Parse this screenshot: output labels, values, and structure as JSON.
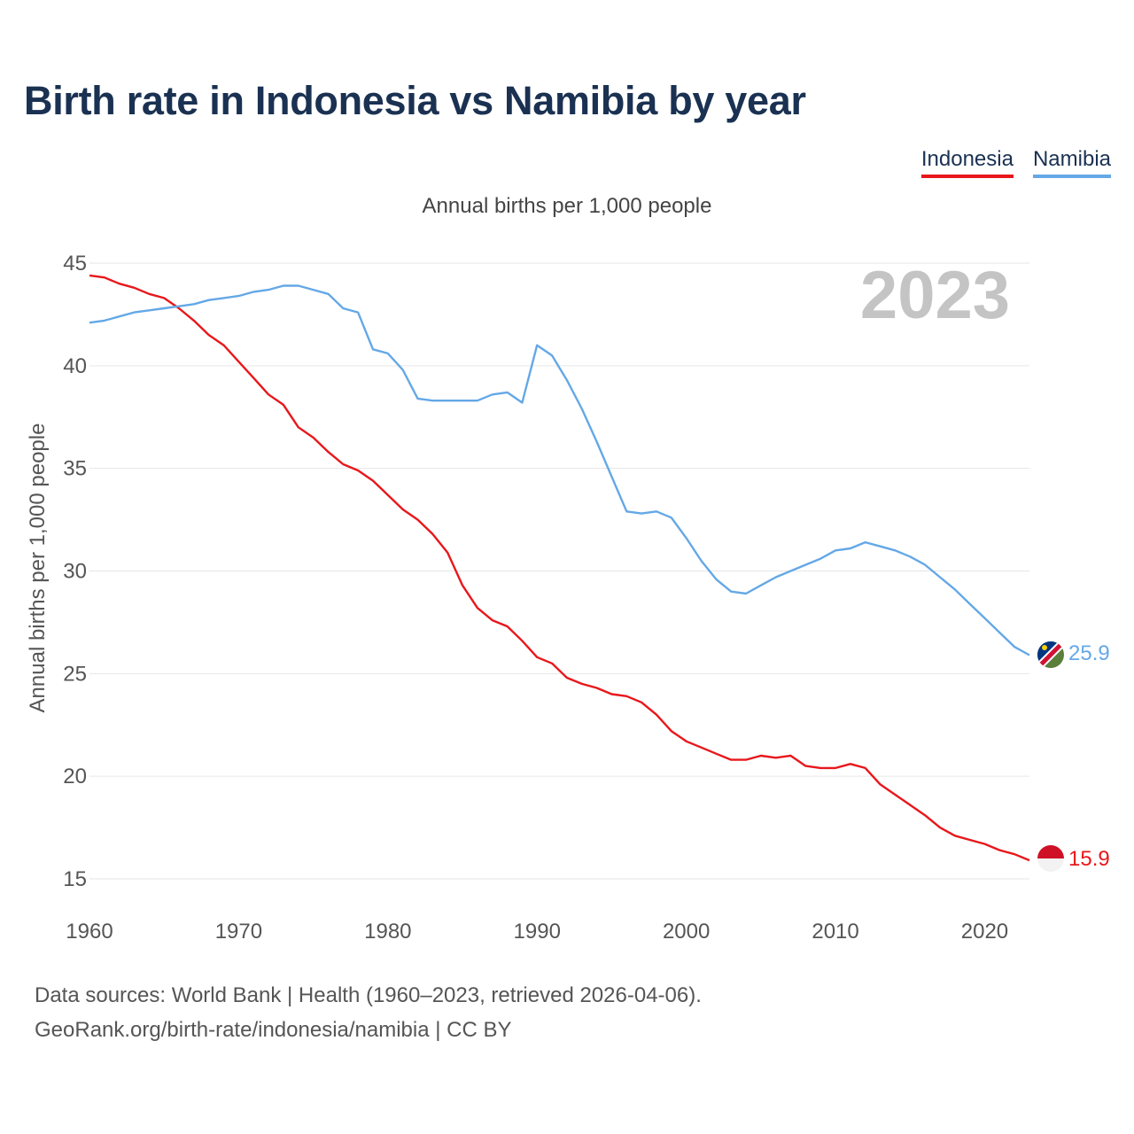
{
  "title": "Birth rate in Indonesia vs Namibia by year",
  "legend": {
    "indonesia": "Indonesia",
    "namibia": "Namibia"
  },
  "colors": {
    "indonesia": "#e8171b",
    "namibia": "#64a8e6",
    "title": "#1a3152",
    "year": "#c4c4c4"
  },
  "footer": {
    "line1": "Data sources: World Bank | Health (1960–2023, retrieved 2026-04-06).",
    "line2": "GeoRank.org/birth-rate/indonesia/namibia | CC BY"
  },
  "chart_data": {
    "type": "line",
    "title": "Birth rate in Indonesia vs Namibia by year",
    "subtitle": "Annual births per 1,000 people",
    "ylabel": "Annual births per 1,000 people",
    "xlabel": "",
    "year_label": "2023",
    "xlim": [
      1960,
      2023
    ],
    "ylim": [
      15,
      45
    ],
    "x_ticks": [
      1960,
      1970,
      1980,
      1990,
      2000,
      2010,
      2020
    ],
    "y_ticks": [
      15,
      20,
      25,
      30,
      35,
      40,
      45
    ],
    "grid": true,
    "legend_position": "top-right",
    "x": [
      1960,
      1961,
      1962,
      1963,
      1964,
      1965,
      1966,
      1967,
      1968,
      1969,
      1970,
      1971,
      1972,
      1973,
      1974,
      1975,
      1976,
      1977,
      1978,
      1979,
      1980,
      1981,
      1982,
      1983,
      1984,
      1985,
      1986,
      1987,
      1988,
      1989,
      1990,
      1991,
      1992,
      1993,
      1994,
      1995,
      1996,
      1997,
      1998,
      1999,
      2000,
      2001,
      2002,
      2003,
      2004,
      2005,
      2006,
      2007,
      2008,
      2009,
      2010,
      2011,
      2012,
      2013,
      2014,
      2015,
      2016,
      2017,
      2018,
      2019,
      2020,
      2021,
      2022,
      2023
    ],
    "series": [
      {
        "name": "Indonesia",
        "end_label": "15.9",
        "values": [
          44.4,
          44.3,
          44.0,
          43.8,
          43.5,
          43.3,
          42.8,
          42.2,
          41.5,
          41.0,
          40.2,
          39.4,
          38.6,
          38.1,
          37.0,
          36.5,
          35.8,
          35.2,
          34.9,
          34.4,
          33.7,
          33.0,
          32.5,
          31.8,
          30.9,
          29.3,
          28.2,
          27.6,
          27.3,
          26.6,
          25.8,
          25.5,
          24.8,
          24.5,
          24.3,
          24.0,
          23.9,
          23.6,
          23.0,
          22.2,
          21.7,
          21.4,
          21.1,
          20.8,
          20.8,
          21.0,
          20.9,
          21.0,
          20.5,
          20.4,
          20.4,
          20.6,
          20.4,
          19.6,
          19.1,
          18.6,
          18.1,
          17.5,
          17.1,
          16.9,
          16.7,
          16.4,
          16.2,
          15.9
        ]
      },
      {
        "name": "Namibia",
        "end_label": "25.9",
        "values": [
          42.1,
          42.2,
          42.4,
          42.6,
          42.7,
          42.8,
          42.9,
          43.0,
          43.2,
          43.3,
          43.4,
          43.6,
          43.7,
          43.9,
          43.9,
          43.7,
          43.5,
          42.8,
          42.6,
          40.8,
          40.6,
          39.8,
          38.4,
          38.3,
          38.3,
          38.3,
          38.3,
          38.6,
          38.7,
          38.2,
          41.0,
          40.5,
          39.3,
          37.9,
          36.3,
          34.6,
          32.9,
          32.8,
          32.9,
          32.6,
          31.6,
          30.5,
          29.6,
          29.0,
          28.9,
          29.3,
          29.7,
          30.0,
          30.3,
          30.6,
          31.0,
          31.1,
          31.4,
          31.2,
          31.0,
          30.7,
          30.3,
          29.7,
          29.1,
          28.4,
          27.7,
          27.0,
          26.3,
          25.9
        ]
      }
    ]
  }
}
